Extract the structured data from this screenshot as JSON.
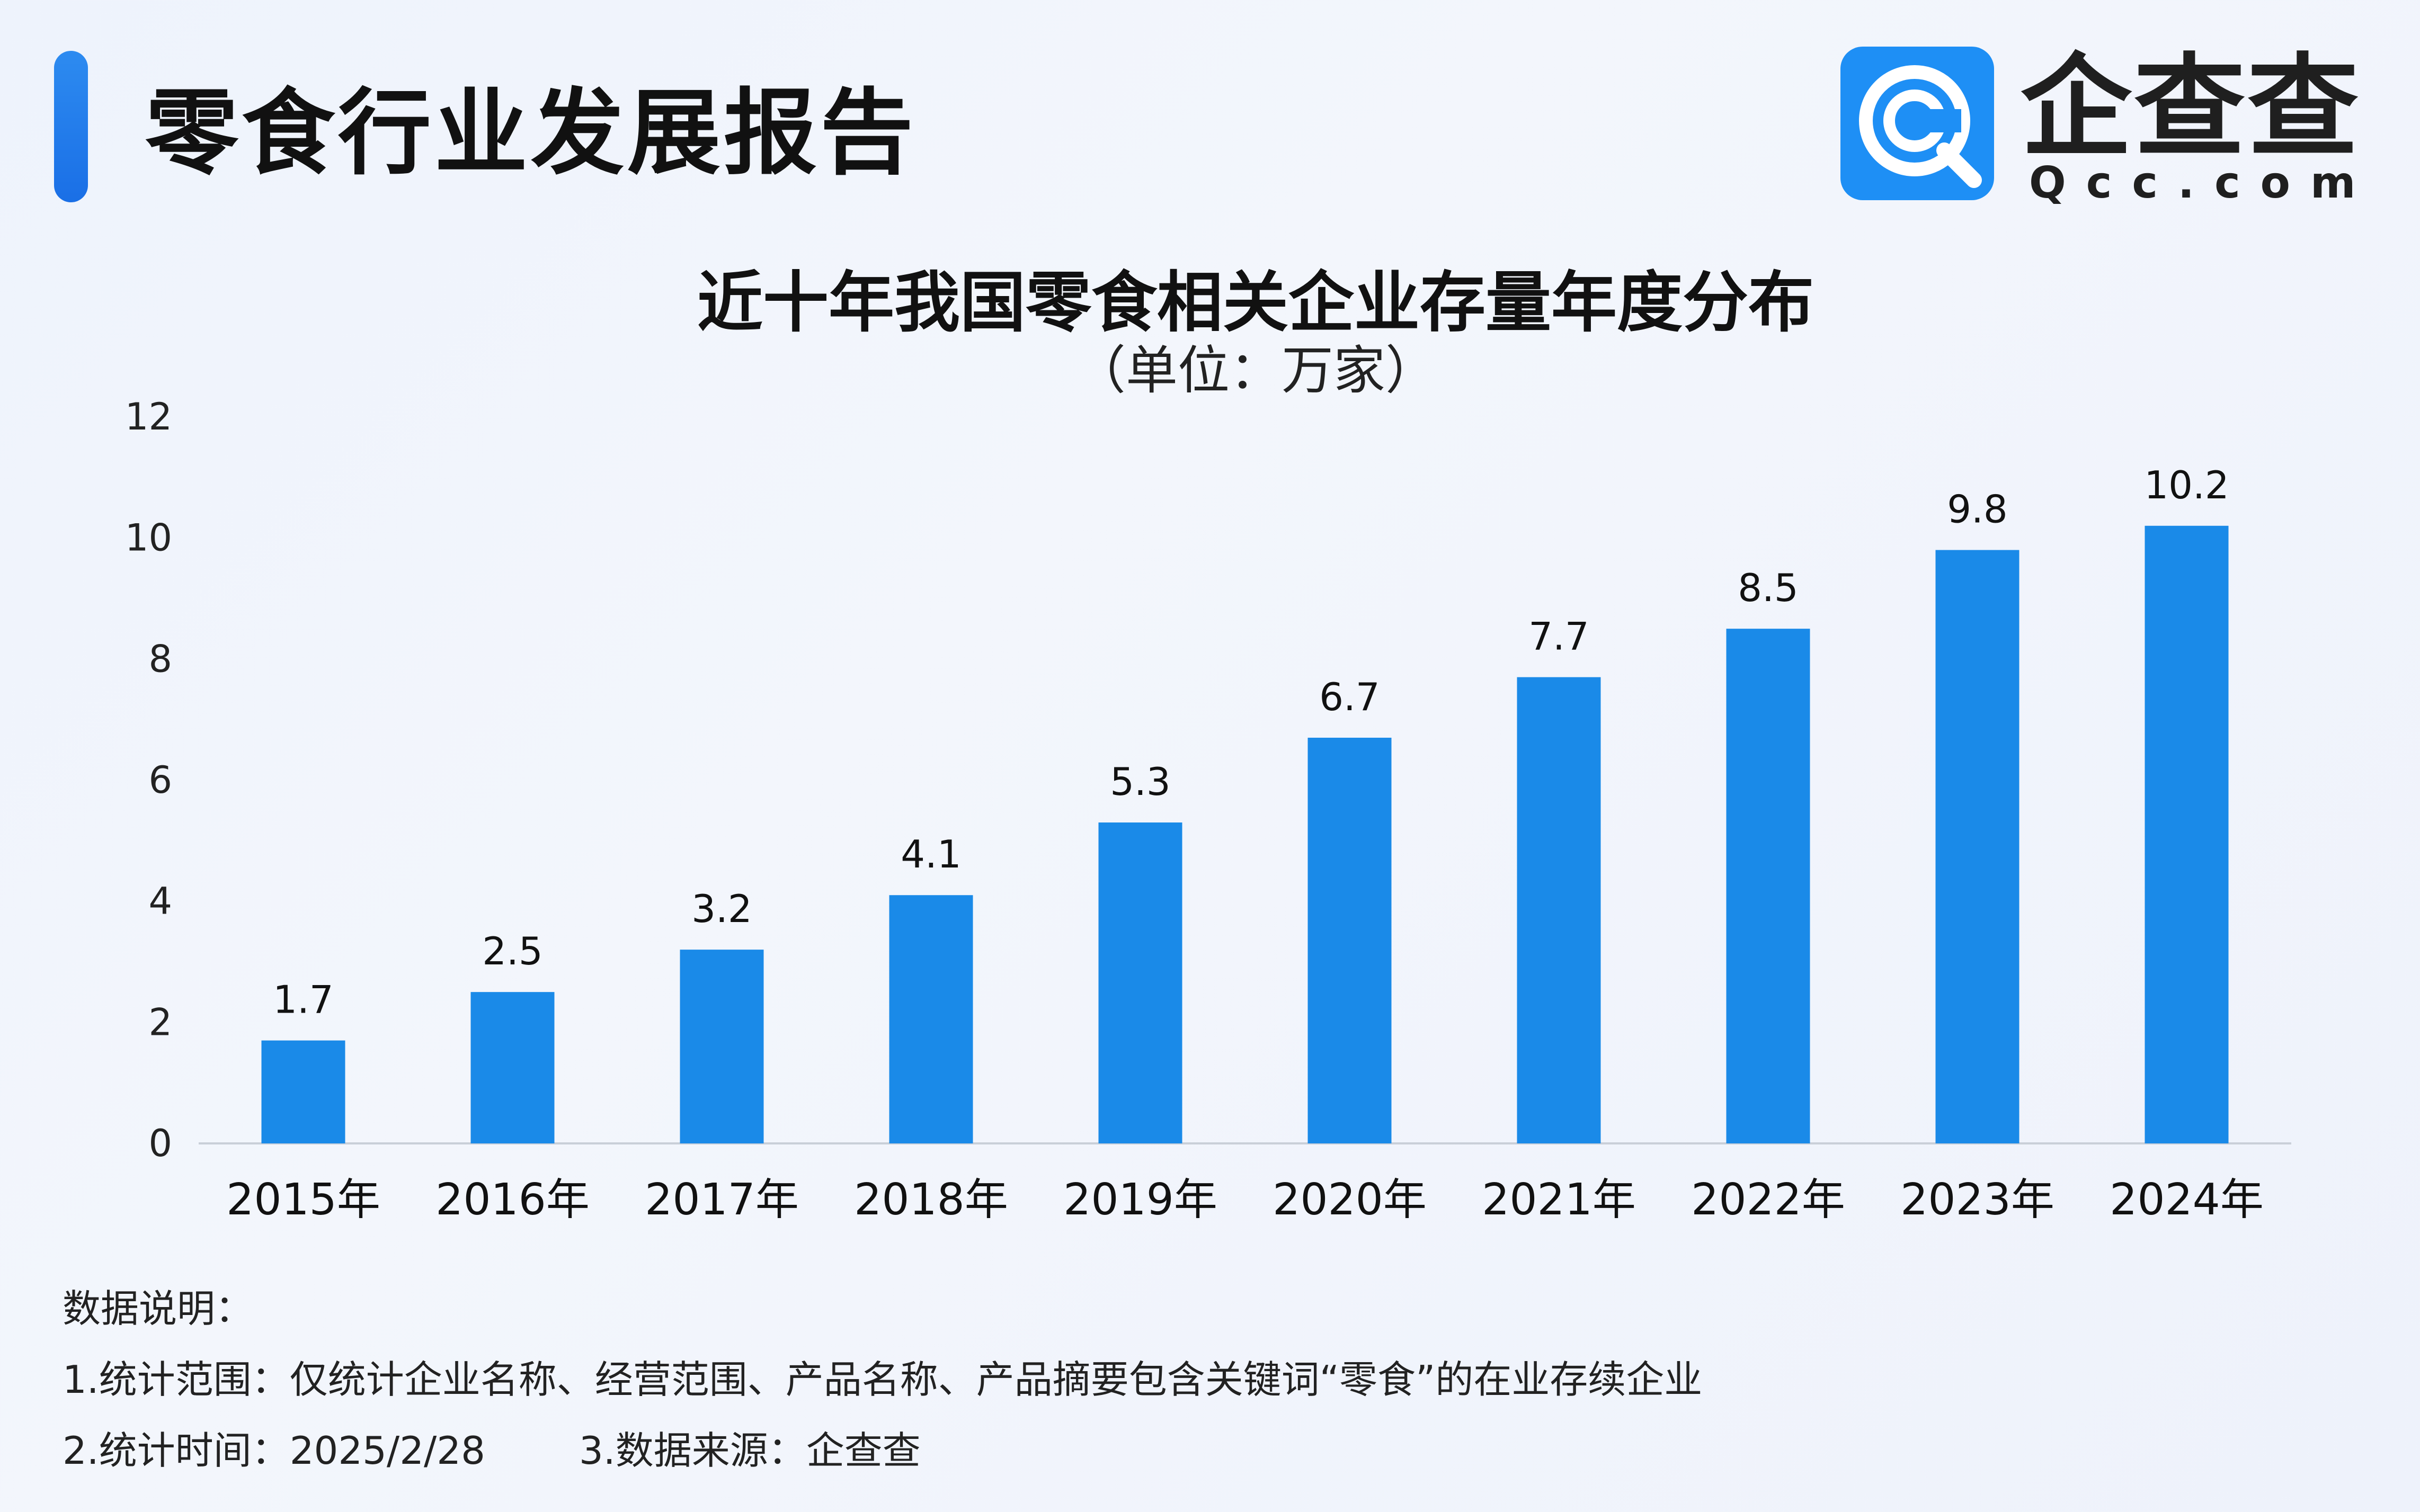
{
  "header": {
    "report_title": "零食行业发展报告",
    "accent_color": "#1a7ae8"
  },
  "logo": {
    "brand_cn": "企查查",
    "brand_en": "Qcc.com"
  },
  "chart_data": {
    "type": "bar",
    "title": "近十年我国零食相关企业存量年度分布",
    "subtitle": "（单位：万家）",
    "categories": [
      "2015年",
      "2016年",
      "2017年",
      "2018年",
      "2019年",
      "2020年",
      "2021年",
      "2022年",
      "2023年",
      "2024年"
    ],
    "values": [
      1.7,
      2.5,
      3.2,
      4.1,
      5.3,
      6.7,
      7.7,
      8.5,
      9.8,
      10.2
    ],
    "data_labels": [
      "1.7",
      "2.5",
      "3.2",
      "4.1",
      "5.3",
      "6.7",
      "7.7",
      "8.5",
      "9.8",
      "10.2"
    ],
    "ylim": [
      0,
      12
    ],
    "yticks": [
      "0",
      "2",
      "4",
      "6",
      "8",
      "10",
      "12"
    ],
    "grid": false,
    "bar_color": "#1a8ae8"
  },
  "notes": {
    "heading": "数据说明：",
    "line1": "1.统计范围：仅统计企业名称、经营范围、产品名称、产品摘要包含关键词“零食”的在业存续企业",
    "line2": "2.统计时间：2025/2/28",
    "line3": "3.数据来源：企查查"
  }
}
